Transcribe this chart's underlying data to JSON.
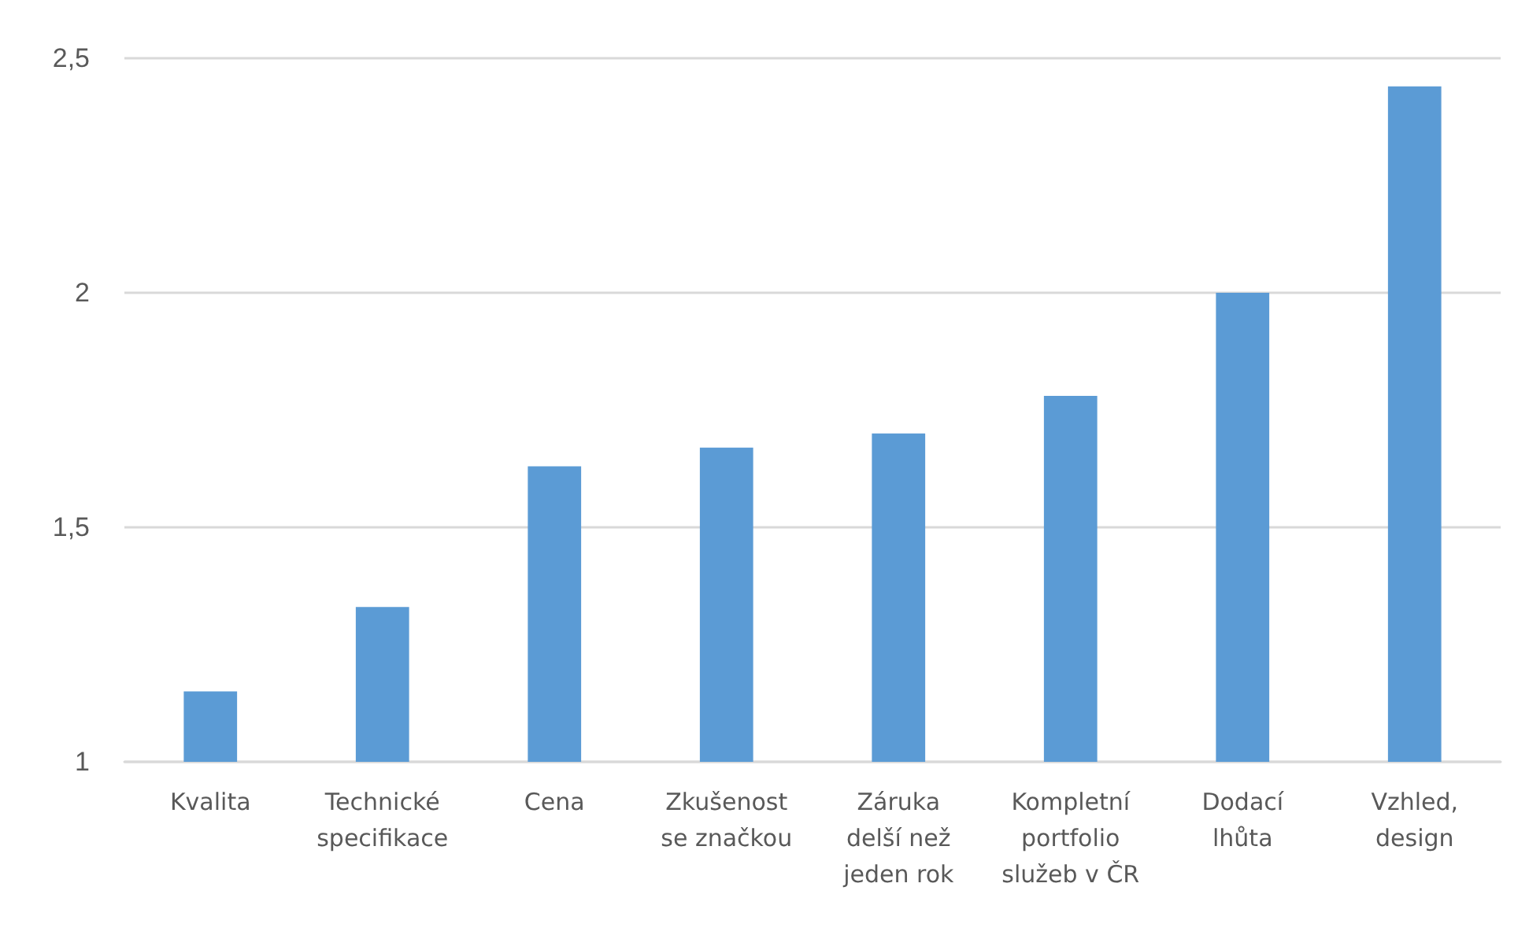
{
  "chart_data": {
    "type": "bar",
    "categories": [
      "Kvalita",
      "Technické specifikace",
      "Cena",
      "Zkušenost se značkou",
      "Záruka delší než jeden rok",
      "Kompletní portfolio služeb v ČR",
      "Dodací lhůta",
      "Vzhled, design"
    ],
    "values": [
      1.15,
      1.33,
      1.63,
      1.67,
      1.7,
      1.78,
      2.0,
      2.44
    ],
    "color": "#5b9bd5",
    "ylim": [
      1,
      2.5
    ],
    "yticks": [
      1,
      {
        "value": 1.5,
        "label": "1,5"
      },
      2,
      {
        "value": 2.5,
        "label": "2,5"
      }
    ],
    "grid": "y"
  }
}
